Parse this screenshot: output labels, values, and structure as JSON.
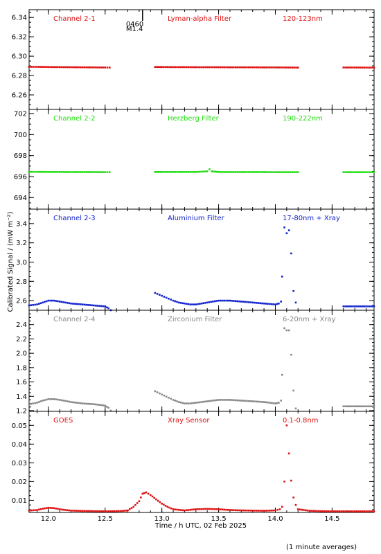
{
  "chart_data": {
    "type": "scatter",
    "x_range": [
      11.83,
      14.87
    ],
    "x_ticks": [
      12.0,
      12.5,
      13.0,
      13.5,
      14.0,
      14.5
    ],
    "x_tick_labels": [
      "12.0",
      "12.5",
      "13.0",
      "13.5",
      "14.0",
      "14.5"
    ],
    "xlabel": "Time / h UTC, 02 Feb 2025",
    "ylabel": "Calibrated Signal / (mW m⁻²)",
    "footnote": "(1 minute averages)",
    "flare_marker": {
      "x": 12.83,
      "label_time": "0460",
      "label_class": "M1.4"
    },
    "panels": [
      {
        "id": "ch2-1",
        "channel": "Channel 2-1",
        "filter": "Lyman-alpha Filter",
        "band": "120-123nm",
        "color": "#dd1111",
        "ylim": [
          6.245,
          6.348
        ],
        "yticks": [
          6.26,
          6.28,
          6.3,
          6.32,
          6.34
        ],
        "ytick_labels": [
          "6.26",
          "6.28",
          "6.30",
          "6.32",
          "6.34"
        ],
        "series": [
          {
            "x": [
              11.83,
              11.9,
              12.0,
              12.1,
              12.2,
              12.3,
              12.4,
              12.5,
              12.54
            ],
            "y": [
              6.289,
              6.289,
              6.2888,
              6.2887,
              6.2886,
              6.2885,
              6.2884,
              6.2883,
              6.2882
            ]
          },
          {
            "x": [
              12.94,
              13.0,
              13.1,
              13.2,
              13.3,
              13.4,
              13.5,
              13.6,
              13.7,
              13.8,
              13.9,
              14.0,
              14.1,
              14.2
            ],
            "y": [
              6.2888,
              6.2888,
              6.2887,
              6.2887,
              6.2886,
              6.2886,
              6.2886,
              6.2885,
              6.2885,
              6.2885,
              6.2884,
              6.2884,
              6.2883,
              6.2882
            ]
          },
          {
            "x": [
              14.6,
              14.7,
              14.8,
              14.87
            ],
            "y": [
              6.2883,
              6.2883,
              6.2882,
              6.2882
            ]
          }
        ]
      },
      {
        "id": "ch2-2",
        "channel": "Channel 2-2",
        "filter": "Herzberg Filter",
        "band": "190-222nm",
        "color": "#22dd11",
        "ylim": [
          692.9,
          702.4
        ],
        "yticks": [
          694,
          696,
          698,
          700,
          702
        ],
        "ytick_labels": [
          "694",
          "696",
          "698",
          "700",
          "702"
        ],
        "series": [
          {
            "x": [
              11.83,
              11.9,
              12.0,
              12.1,
              12.2,
              12.3,
              12.4,
              12.5,
              12.54
            ],
            "y": [
              696.45,
              696.45,
              696.44,
              696.44,
              696.43,
              696.43,
              696.43,
              696.42,
              696.42
            ]
          },
          {
            "x": [
              12.94,
              13.0,
              13.1,
              13.2,
              13.3,
              13.4,
              13.42,
              13.44,
              13.5,
              13.6,
              13.7,
              13.8,
              13.9,
              14.0,
              14.1,
              14.2
            ],
            "y": [
              696.44,
              696.44,
              696.44,
              696.44,
              696.44,
              696.5,
              696.7,
              696.5,
              696.44,
              696.43,
              696.43,
              696.43,
              696.43,
              696.42,
              696.42,
              696.42
            ]
          },
          {
            "x": [
              14.6,
              14.7,
              14.8,
              14.87
            ],
            "y": [
              696.42,
              696.42,
              696.42,
              696.42
            ]
          }
        ]
      },
      {
        "id": "ch2-3",
        "channel": "Channel 2-3",
        "filter": "Aluminium Filter",
        "band": "17-80nm + Xray",
        "color": "#1122cc",
        "ylim": [
          2.5,
          3.55
        ],
        "yticks": [
          2.6,
          2.8,
          3.0,
          3.2,
          3.4
        ],
        "ytick_labels": [
          "2.6",
          "2.8",
          "3.0",
          "3.2",
          "3.4"
        ],
        "series": [
          {
            "x": [
              11.83,
              11.9,
              11.95,
              12.0,
              12.05,
              12.1,
              12.2,
              12.3,
              12.4,
              12.5,
              12.53,
              12.55
            ],
            "y": [
              2.55,
              2.56,
              2.58,
              2.6,
              2.6,
              2.59,
              2.57,
              2.56,
              2.55,
              2.54,
              2.52,
              2.5
            ]
          },
          {
            "x": [
              12.94,
              12.98,
              13.02,
              13.06,
              13.1,
              13.15,
              13.2,
              13.25,
              13.3,
              13.35,
              13.4,
              13.45,
              13.5,
              13.55,
              13.6,
              13.7,
              13.8,
              13.9,
              14.0,
              14.03,
              14.05
            ],
            "y": [
              2.68,
              2.66,
              2.64,
              2.62,
              2.6,
              2.58,
              2.57,
              2.56,
              2.56,
              2.57,
              2.58,
              2.59,
              2.6,
              2.6,
              2.6,
              2.59,
              2.58,
              2.57,
              2.56,
              2.57,
              2.59
            ]
          },
          {
            "x": [
              14.06,
              14.08,
              14.1,
              14.12,
              14.14,
              14.16,
              14.18
            ],
            "y": [
              2.85,
              3.36,
              3.3,
              3.33,
              3.09,
              2.7,
              2.58
            ]
          },
          {
            "x": [
              14.6,
              14.7,
              14.8,
              14.87
            ],
            "y": [
              2.54,
              2.54,
              2.54,
              2.54
            ]
          }
        ]
      },
      {
        "id": "ch2-4",
        "channel": "Channel 2-4",
        "filter": "Zirconium Filter",
        "band": "6-20nm + Xray",
        "color": "#888888",
        "ylim": [
          1.19,
          2.6
        ],
        "yticks": [
          1.2,
          1.4,
          1.6,
          1.8,
          2.0,
          2.2,
          2.4
        ],
        "ytick_labels": [
          "1.2",
          "1.4",
          "1.6",
          "1.8",
          "2.0",
          "2.2",
          "2.4"
        ],
        "series": [
          {
            "x": [
              11.83,
              11.9,
              11.95,
              12.0,
              12.05,
              12.1,
              12.2,
              12.3,
              12.4,
              12.5,
              12.53,
              12.55
            ],
            "y": [
              1.29,
              1.31,
              1.34,
              1.36,
              1.36,
              1.35,
              1.32,
              1.3,
              1.29,
              1.27,
              1.24,
              1.2
            ]
          },
          {
            "x": [
              12.94,
              12.98,
              13.02,
              13.06,
              13.1,
              13.15,
              13.2,
              13.25,
              13.3,
              13.35,
              13.4,
              13.45,
              13.5,
              13.55,
              13.6,
              13.7,
              13.8,
              13.9,
              14.0,
              14.03,
              14.05
            ],
            "y": [
              1.47,
              1.44,
              1.41,
              1.38,
              1.35,
              1.32,
              1.3,
              1.3,
              1.31,
              1.32,
              1.33,
              1.34,
              1.35,
              1.35,
              1.35,
              1.34,
              1.33,
              1.32,
              1.3,
              1.31,
              1.34
            ]
          },
          {
            "x": [
              14.06,
              14.08,
              14.1,
              14.12,
              14.14,
              14.16,
              14.18
            ],
            "y": [
              1.7,
              2.35,
              2.32,
              2.32,
              1.98,
              1.48,
              1.23
            ]
          },
          {
            "x": [
              14.6,
              14.7,
              14.8,
              14.87
            ],
            "y": [
              1.26,
              1.26,
              1.26,
              1.26
            ]
          }
        ]
      },
      {
        "id": "goes",
        "channel": "GOES",
        "filter": "Xray Sensor",
        "band": "0.1-0.8nm",
        "color": "#dd1111",
        "ylim": [
          0.0035,
          0.0575
        ],
        "yticks": [
          0.01,
          0.02,
          0.03,
          0.04,
          0.05
        ],
        "ytick_labels": [
          "0.01",
          "0.02",
          "0.03",
          "0.04",
          "0.05"
        ],
        "series": [
          {
            "x": [
              11.83,
              11.9,
              11.95,
              12.0,
              12.05,
              12.1,
              12.15,
              12.2,
              12.3,
              12.4,
              12.5,
              12.6,
              12.65,
              12.7,
              12.75,
              12.8,
              12.83,
              12.86,
              12.9,
              12.95,
              13.0,
              13.05,
              13.1,
              13.2,
              13.3,
              13.4,
              13.5,
              13.6,
              13.7,
              13.8,
              13.9,
              14.0,
              14.04,
              14.06
            ],
            "y": [
              0.0045,
              0.0048,
              0.0055,
              0.006,
              0.0058,
              0.0052,
              0.0048,
              0.0045,
              0.0043,
              0.0042,
              0.0041,
              0.0042,
              0.0043,
              0.0046,
              0.0065,
              0.0095,
              0.0135,
              0.0142,
              0.0128,
              0.0105,
              0.0082,
              0.0065,
              0.0052,
              0.0046,
              0.0052,
              0.0054,
              0.0052,
              0.0048,
              0.0046,
              0.0045,
              0.0044,
              0.0046,
              0.0052,
              0.0065
            ]
          },
          {
            "x": [
              14.08,
              14.1,
              14.12,
              14.14,
              14.16,
              14.18,
              14.2,
              14.3,
              14.4,
              14.5,
              14.6,
              14.7,
              14.8,
              14.87
            ],
            "y": [
              0.02,
              0.05,
              0.035,
              0.0205,
              0.0115,
              0.0075,
              0.0052,
              0.0044,
              0.0042,
              0.0041,
              0.0041,
              0.0041,
              0.0041,
              0.0041
            ]
          }
        ]
      }
    ]
  }
}
